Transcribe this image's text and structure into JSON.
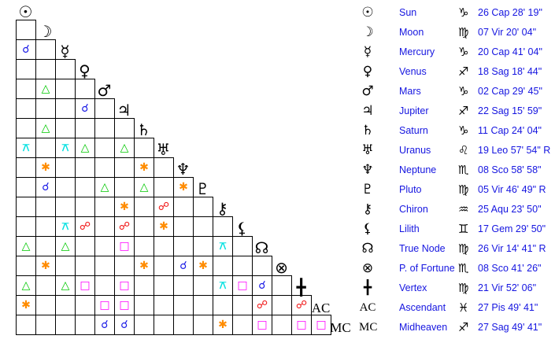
{
  "bodies": [
    {
      "name": "Sun",
      "glyph": "☉",
      "sign": "♑",
      "position": "26 Cap 28' 19\""
    },
    {
      "name": "Moon",
      "glyph": "☽",
      "sign": "♍",
      "position": "07 Vir 20' 04\""
    },
    {
      "name": "Mercury",
      "glyph": "☿",
      "sign": "♑",
      "position": "20 Cap 41' 04\""
    },
    {
      "name": "Venus",
      "glyph": "♀",
      "sign": "♐",
      "position": "18 Sag 18' 44\""
    },
    {
      "name": "Mars",
      "glyph": "♂",
      "sign": "♑",
      "position": "02 Cap 29' 45\""
    },
    {
      "name": "Jupiter",
      "glyph": "♃",
      "sign": "♐",
      "position": "22 Sag 15' 59\""
    },
    {
      "name": "Saturn",
      "glyph": "♄",
      "sign": "♑",
      "position": "11 Cap 24' 04\""
    },
    {
      "name": "Uranus",
      "glyph": "♅",
      "sign": "♌",
      "position": "19 Leo 57' 54\" R"
    },
    {
      "name": "Neptune",
      "glyph": "♆",
      "sign": "♏",
      "position": "08 Sco 58' 58\""
    },
    {
      "name": "Pluto",
      "glyph": "♇",
      "sign": "♍",
      "position": "05 Vir 46' 49\" R"
    },
    {
      "name": "Chiron",
      "glyph": "⚷",
      "sign": "♒",
      "position": "25 Aqu 23' 50\""
    },
    {
      "name": "Lilith",
      "glyph": "⚸",
      "sign": "♊",
      "position": "17 Gem 29' 50\""
    },
    {
      "name": "True Node",
      "glyph": "☊",
      "sign": "♍",
      "position": "26 Vir 14' 41\" R"
    },
    {
      "name": "P. of Fortune",
      "glyph": "⊗",
      "sign": "♏",
      "position": "08 Sco 41' 26\""
    },
    {
      "name": "Vertex",
      "glyph": "╋",
      "sign": "♍",
      "position": "21 Vir 52' 06\""
    },
    {
      "name": "Ascendant",
      "glyph": "AC",
      "sign": "♓",
      "position": "27 Pis 49' 41\""
    },
    {
      "name": "Midheaven",
      "glyph": "MC",
      "sign": "♐",
      "position": "27 Sag 49' 41\""
    }
  ],
  "aspect_types": {
    "c": {
      "name": "conjunction",
      "symbol": "☌",
      "color": "#1a1ae6"
    },
    "t": {
      "name": "trine",
      "symbol": "△",
      "color": "#00c800"
    },
    "s": {
      "name": "sextile",
      "symbol": "✱",
      "color": "#ff8c00"
    },
    "q": {
      "name": "quincunx",
      "symbol": "⚻",
      "color": "#00e0e0"
    },
    "o": {
      "name": "opposition",
      "symbol": "☍",
      "color": "#f01010"
    },
    "x": {
      "name": "square",
      "symbol": "□",
      "color": "#ff00ff"
    }
  },
  "aspect_grid": [
    ".",
    "c.",
    "...",
    ".t..",
    "...c.",
    ".t....",
    "q.qt.t.",
    ".s....s.",
    ".c..t.t.s",
    ".....s.o..",
    "..qo.o.s...",
    "t.t..x....q.",
    ".s....s.cs...",
    "t.tx.x....qxc.",
    "s...xx......o.o",
    "....cc....s.x.xx"
  ]
}
